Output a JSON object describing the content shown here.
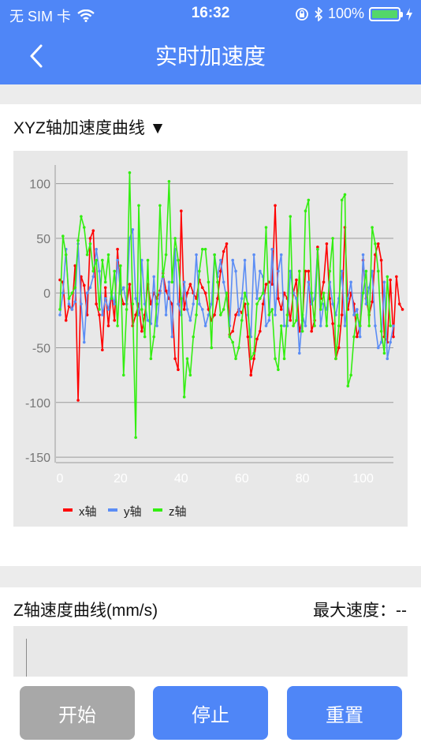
{
  "status": {
    "carrier": "无 SIM 卡",
    "time": "16:32",
    "battery": "100%"
  },
  "nav": {
    "title": "实时加速度"
  },
  "section1": {
    "title": "XYZ轴加速度曲线 ▼"
  },
  "section2": {
    "title": "Z轴速度曲线(mm/s)",
    "max_speed": "最大速度：--"
  },
  "buttons": {
    "start": "开始",
    "stop": "停止",
    "reset": "重置"
  },
  "colors": {
    "accent": "#4f86f7",
    "start_disabled": "#a8a8a8",
    "x": "#ff0000",
    "y": "#5b8df5",
    "z": "#33ee11"
  },
  "chart_data": {
    "type": "line",
    "xlim": [
      0,
      110
    ],
    "ylim": [
      -155,
      130
    ],
    "xticks": [
      0,
      20,
      40,
      60,
      80,
      100
    ],
    "yticks": [
      100,
      50,
      0,
      -50,
      -100,
      -150
    ],
    "legend": "bottom-left",
    "grid": true,
    "series": [
      {
        "name": "x轴",
        "color": "#ff0000",
        "values": [
          12,
          10,
          -25,
          -12,
          -15,
          25,
          -98,
          15,
          7,
          -20,
          50,
          57,
          -10,
          -20,
          -52,
          5,
          -30,
          0,
          -25,
          40,
          0,
          -10,
          -10,
          8,
          -30,
          -20,
          -10,
          -35,
          -20,
          8,
          -10,
          0,
          -5,
          2,
          18,
          2,
          -5,
          -10,
          -60,
          -70,
          75,
          -15,
          0,
          8,
          0,
          -5,
          12,
          5,
          0,
          -15,
          -25,
          -20,
          -5,
          20,
          38,
          45,
          -38,
          -35,
          -20,
          -15,
          -18,
          -10,
          -40,
          -75,
          -60,
          -42,
          -35,
          -10,
          8,
          10,
          8,
          80,
          -5,
          -15,
          0,
          -5,
          -25,
          0,
          12,
          -35,
          -25,
          20,
          20,
          -35,
          -25,
          42,
          -5,
          10,
          45,
          -5,
          -28,
          -60,
          -50,
          -20,
          60,
          -15,
          0,
          -10,
          -40,
          -30,
          30,
          -5,
          -20,
          -8,
          35,
          45,
          30,
          -40,
          -45,
          12,
          -40,
          15,
          -10,
          -15
        ]
      },
      {
        "name": "y轴",
        "color": "#5b8df5",
        "values": [
          -20,
          0,
          40,
          -10,
          -15,
          -8,
          45,
          -10,
          -45,
          0,
          5,
          15,
          40,
          20,
          -20,
          -5,
          -15,
          0,
          -10,
          30,
          0,
          5,
          -10,
          50,
          58,
          -5,
          -20,
          30,
          -10,
          -25,
          -28,
          15,
          -30,
          0,
          20,
          -20,
          10,
          -40,
          40,
          -10,
          -20,
          10,
          -15,
          -25,
          -10,
          35,
          -10,
          -15,
          -30,
          -20,
          -10,
          35,
          15,
          30,
          10,
          -5,
          -30,
          30,
          20,
          -20,
          -5,
          30,
          -20,
          -40,
          35,
          -5,
          20,
          15,
          -30,
          -25,
          40,
          -20,
          20,
          35,
          -30,
          -30,
          20,
          0,
          -5,
          -55,
          -20,
          -30,
          10,
          -10,
          -5,
          40,
          -30,
          -10,
          -15,
          10,
          -10,
          -20,
          -5,
          20,
          -30,
          -5,
          10,
          -20,
          -15,
          -40,
          35,
          -10,
          5,
          20,
          -30,
          -50,
          -45,
          10,
          -60,
          -45,
          -30
        ]
      },
      {
        "name": "z轴",
        "color": "#33ee11",
        "values": [
          -15,
          52,
          35,
          -5,
          0,
          5,
          48,
          70,
          60,
          35,
          45,
          20,
          30,
          -15,
          30,
          10,
          35,
          -5,
          20,
          -30,
          25,
          -75,
          -15,
          110,
          -10,
          -132,
          80,
          -15,
          -40,
          30,
          -60,
          -40,
          -10,
          80,
          15,
          35,
          102,
          10,
          50,
          30,
          -5,
          -95,
          -60,
          -75,
          -40,
          -20,
          20,
          40,
          40,
          10,
          -50,
          35,
          10,
          -20,
          -15,
          0,
          -40,
          -45,
          -60,
          -50,
          -25,
          0,
          -10,
          -60,
          -55,
          -10,
          -5,
          0,
          60,
          -20,
          -15,
          -60,
          -70,
          -30,
          -60,
          -20,
          70,
          -30,
          -25,
          20,
          -35,
          75,
          85,
          0,
          -30,
          40,
          -15,
          0,
          -30,
          20,
          50,
          -60,
          -30,
          85,
          90,
          -85,
          -75,
          -40,
          -20,
          -30,
          0,
          20,
          -30,
          60,
          45,
          20,
          -35,
          -55,
          15,
          -30
        ]
      }
    ]
  }
}
